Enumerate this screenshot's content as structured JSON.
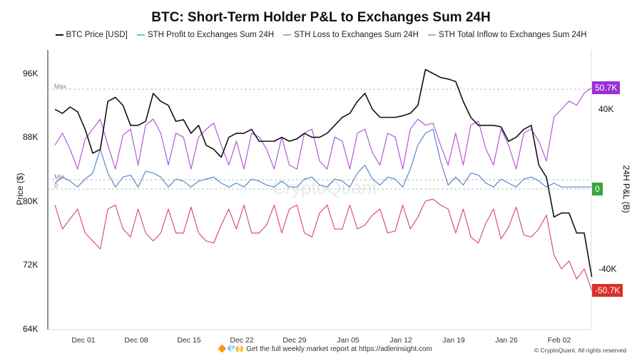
{
  "chart_data": {
    "type": "line",
    "title": "BTC: Short-Term Holder P&L to Exchanges Sum 24H",
    "ylabel_left": "Price ($)",
    "ylabel_right": "24H P&L (B)",
    "left_ticks": [
      "96K",
      "88K",
      "80K",
      "72K",
      "64K"
    ],
    "left_tick_values": [
      96000,
      88000,
      80000,
      72000,
      64000
    ],
    "ylim_left": [
      64000,
      99000
    ],
    "right_ticks": [
      "40K",
      "-40K"
    ],
    "right_tick_values": [
      40000,
      -40000
    ],
    "ylim_right": [
      -70000,
      70000
    ],
    "x_ticks": [
      "Dec 01",
      "Dec 08",
      "Dec 15",
      "Dec 22",
      "Dec 29",
      "Jan 05",
      "Jan 12",
      "Jan 19",
      "Jan 26",
      "Feb 02"
    ],
    "x_start": "Nov 26",
    "x": [
      "Nov 26",
      "Nov 27",
      "Nov 28",
      "Nov 29",
      "Nov 30",
      "Dec 01",
      "Dec 02",
      "Dec 03",
      "Dec 04",
      "Dec 05",
      "Dec 06",
      "Dec 07",
      "Dec 08",
      "Dec 09",
      "Dec 10",
      "Dec 11",
      "Dec 12",
      "Dec 13",
      "Dec 14",
      "Dec 15",
      "Dec 16",
      "Dec 17",
      "Dec 18",
      "Dec 19",
      "Dec 20",
      "Dec 21",
      "Dec 22",
      "Dec 23",
      "Dec 24",
      "Dec 25",
      "Dec 26",
      "Dec 27",
      "Dec 28",
      "Dec 29",
      "Dec 30",
      "Dec 31",
      "Jan 01",
      "Jan 02",
      "Jan 03",
      "Jan 04",
      "Jan 05",
      "Jan 06",
      "Jan 07",
      "Jan 08",
      "Jan 09",
      "Jan 10",
      "Jan 11",
      "Jan 12",
      "Jan 13",
      "Jan 14",
      "Jan 15",
      "Jan 16",
      "Jan 17",
      "Jan 18",
      "Jan 19",
      "Jan 20",
      "Jan 21",
      "Jan 22",
      "Jan 23",
      "Jan 24",
      "Jan 25",
      "Jan 26",
      "Jan 27",
      "Jan 28",
      "Jan 29",
      "Jan 30",
      "Jan 31",
      "Feb 01",
      "Feb 02",
      "Feb 03",
      "Feb 04",
      "Feb 05"
    ],
    "series": [
      {
        "name": "BTC Price [USD]",
        "axis": "left",
        "color": "#111111",
        "values": [
          91500,
          91000,
          91800,
          91200,
          89000,
          86000,
          86500,
          92500,
          93000,
          92000,
          89500,
          89500,
          90000,
          93500,
          92500,
          92000,
          90000,
          90200,
          88500,
          89500,
          87000,
          86500,
          85500,
          88000,
          88500,
          88500,
          89000,
          87500,
          87500,
          87500,
          88000,
          87500,
          87800,
          88500,
          88000,
          88000,
          88500,
          89500,
          90500,
          91000,
          92500,
          93500,
          91500,
          90500,
          90500,
          90500,
          90700,
          91000,
          92000,
          96500,
          96000,
          95500,
          95300,
          95000,
          92500,
          90500,
          89500,
          89500,
          89500,
          89300,
          87500,
          88000,
          89000,
          89500,
          84500,
          83000,
          78000,
          78500,
          78500,
          76000,
          76000,
          70500
        ]
      },
      {
        "name": "STH Profit to Exchanges Sum 24H",
        "axis": "right",
        "color": "#5a86c8",
        "values": [
          3000,
          6000,
          4000,
          1000,
          5000,
          8000,
          20000,
          8000,
          1000,
          6000,
          7000,
          1000,
          9000,
          8000,
          6000,
          1000,
          5000,
          4000,
          1000,
          4000,
          5000,
          6000,
          3000,
          1000,
          3000,
          1000,
          5000,
          4000,
          2000,
          1000,
          4000,
          1000,
          1000,
          5000,
          6000,
          2000,
          1000,
          5000,
          4000,
          1000,
          8000,
          12000,
          5000,
          2000,
          6000,
          5000,
          1000,
          10000,
          22000,
          28000,
          30000,
          14000,
          2000,
          6000,
          2000,
          8000,
          7000,
          3000,
          1000,
          5000,
          3000,
          1000,
          5000,
          6000,
          4000,
          1000,
          3000,
          1000,
          1000,
          1000,
          1000,
          1000
        ]
      },
      {
        "name": "STH Loss to Exchanges Sum 24H",
        "axis": "right",
        "color": "#d9536b",
        "values": [
          -8000,
          -20000,
          -15000,
          -10000,
          -22000,
          -26000,
          -30000,
          -10000,
          -8000,
          -20000,
          -24000,
          -10000,
          -22000,
          -26000,
          -22000,
          -10000,
          -22000,
          -22000,
          -9000,
          -22000,
          -26000,
          -27000,
          -18000,
          -10000,
          -20000,
          -8000,
          -22000,
          -22000,
          -18000,
          -8000,
          -22000,
          -10000,
          -8000,
          -22000,
          -24000,
          -12000,
          -8000,
          -20000,
          -20000,
          -8000,
          -20000,
          -18000,
          -13000,
          -10000,
          -22000,
          -21000,
          -8000,
          -20000,
          -14000,
          -6000,
          -5000,
          -8000,
          -10000,
          -22000,
          -10000,
          -24000,
          -27000,
          -17000,
          -10000,
          -25000,
          -19000,
          -9000,
          -23000,
          -24000,
          -20000,
          -13000,
          -33000,
          -40000,
          -36000,
          -45000,
          -40000,
          -50700
        ]
      },
      {
        "name": "STH Total Inflow to Exchanges Sum 24H",
        "axis": "right",
        "color": "#b35ad9",
        "values": [
          22000,
          28000,
          20000,
          10000,
          25000,
          30000,
          35000,
          22000,
          10000,
          27000,
          30000,
          12000,
          32000,
          35000,
          28000,
          12000,
          28000,
          26000,
          10000,
          26000,
          30000,
          33000,
          22000,
          12000,
          24000,
          10000,
          28000,
          26000,
          20000,
          10000,
          26000,
          12000,
          10000,
          28000,
          30000,
          14000,
          10000,
          26000,
          24000,
          10000,
          28000,
          30000,
          18000,
          12000,
          28000,
          26000,
          10000,
          30000,
          35000,
          32000,
          33000,
          22000,
          12000,
          28000,
          12000,
          32000,
          34000,
          20000,
          12000,
          30000,
          22000,
          10000,
          28000,
          30000,
          24000,
          14000,
          36000,
          40000,
          44000,
          42000,
          48000,
          50700
        ]
      }
    ],
    "annotations": {
      "max_label": "Max",
      "min_label": "Min",
      "zero_label": "0"
    },
    "badges": [
      {
        "text": "50.7K",
        "color": "#9b2fd6"
      },
      {
        "text": "0",
        "color": "#3aa63a"
      },
      {
        "text": "-50.7K",
        "color": "#d9302c"
      }
    ],
    "watermark": "CryptoQuant",
    "legend": [
      {
        "name": "BTC Price [USD]",
        "color": "#111111"
      },
      {
        "name": "STH Profit to Exchanges Sum 24H",
        "color": "#7ccf7c"
      },
      {
        "name": "STH Loss to Exchanges Sum 24H",
        "color": "#e39aa4"
      },
      {
        "name": "STH Total Inflow to  Exchanges Sum 24H",
        "color": "#c99be0"
      }
    ],
    "legend_position": "top-center",
    "grid": false
  },
  "footer": {
    "emoji": "🔶💎🙌",
    "text": "Get the full weekly market report at ",
    "link": "https://adlerinsight.com"
  },
  "copyright": "© CryptoQuant. All rights reserved"
}
